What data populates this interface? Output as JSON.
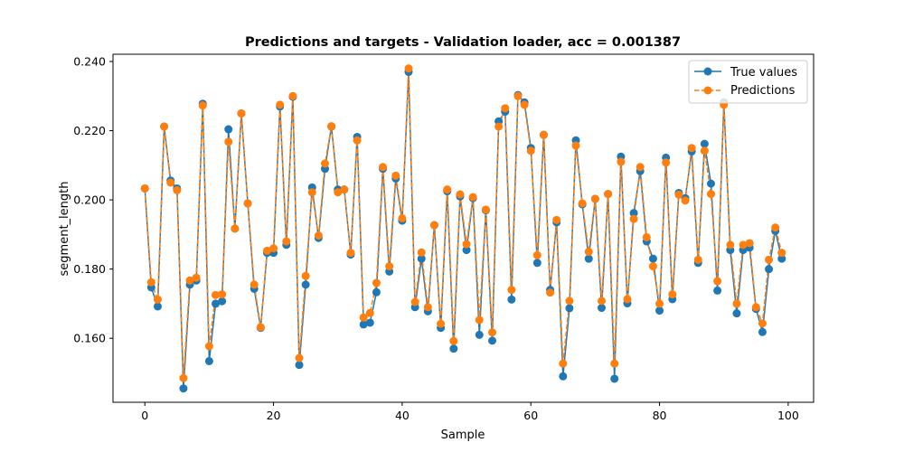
{
  "chart_data": {
    "type": "line",
    "title": "Predictions and targets - Validation loader, acc = 0.001387",
    "xlabel": "Sample",
    "ylabel": "segment_length",
    "xlim": [
      -4.95,
      103.95
    ],
    "ylim": [
      0.1415,
      0.2421
    ],
    "x_ticks": [
      0,
      20,
      40,
      60,
      80,
      100
    ],
    "y_ticks": [
      0.16,
      0.18,
      0.2,
      0.22,
      0.24
    ],
    "y_tick_labels": [
      "0.160",
      "0.180",
      "0.200",
      "0.220",
      "0.240"
    ],
    "legend_position": "top-right",
    "grid": false,
    "series": [
      {
        "name": "True values",
        "color": "#1f77b4",
        "linestyle": "solid",
        "marker": "circle",
        "values": [
          0.2033,
          0.1747,
          0.1692,
          0.2212,
          0.2056,
          0.2033,
          0.1455,
          0.1755,
          0.1767,
          0.2278,
          0.1534,
          0.17,
          0.1707,
          0.2204,
          0.1917,
          0.225,
          0.199,
          0.1743,
          0.163,
          0.1847,
          0.1847,
          0.227,
          0.187,
          0.2298,
          0.1523,
          0.1755,
          0.2036,
          0.189,
          0.209,
          0.2212,
          0.203,
          0.203,
          0.1842,
          0.2182,
          0.164,
          0.1645,
          0.1733,
          0.209,
          0.1793,
          0.2062,
          0.194,
          0.237,
          0.169,
          0.183,
          0.1678,
          0.1927,
          0.163,
          0.2025,
          0.157,
          0.201,
          0.1855,
          0.2005,
          0.161,
          0.197,
          0.1593,
          0.2227,
          0.2255,
          0.1712,
          0.2303,
          0.2282,
          0.215,
          0.1818,
          0.2188,
          0.174,
          0.1935,
          0.149,
          0.1687,
          0.2172,
          0.1987,
          0.183,
          0.2003,
          0.1688,
          0.2017,
          0.1483,
          0.2125,
          0.1701,
          0.1962,
          0.2083,
          0.188,
          0.183,
          0.168,
          0.2122,
          0.1713,
          0.202,
          0.2005,
          0.214,
          0.1818,
          0.2162,
          0.2047,
          0.1738,
          0.2282,
          0.1855,
          0.1672,
          0.1855,
          0.1862,
          0.1685,
          0.1618,
          0.18,
          0.191,
          0.183
        ]
      },
      {
        "name": "Predictions",
        "color": "#ff7f0e",
        "linestyle": "dashed",
        "marker": "circle",
        "values": [
          0.2033,
          0.1762,
          0.1712,
          0.2212,
          0.205,
          0.2028,
          0.1485,
          0.1767,
          0.1775,
          0.2273,
          0.1577,
          0.1725,
          0.1727,
          0.2168,
          0.1917,
          0.225,
          0.199,
          0.1755,
          0.1632,
          0.1853,
          0.186,
          0.2275,
          0.188,
          0.23,
          0.1543,
          0.178,
          0.2022,
          0.1897,
          0.2105,
          0.2213,
          0.2022,
          0.203,
          0.1847,
          0.2172,
          0.166,
          0.1673,
          0.176,
          0.2095,
          0.1808,
          0.207,
          0.1947,
          0.238,
          0.1705,
          0.1848,
          0.169,
          0.1927,
          0.1642,
          0.203,
          0.1592,
          0.2016,
          0.1872,
          0.2008,
          0.1653,
          0.1972,
          0.1617,
          0.2212,
          0.2265,
          0.174,
          0.23,
          0.2275,
          0.2142,
          0.184,
          0.2188,
          0.1732,
          0.1942,
          0.1527,
          0.1708,
          0.2157,
          0.199,
          0.185,
          0.2003,
          0.1708,
          0.2017,
          0.1527,
          0.211,
          0.1713,
          0.1945,
          0.2095,
          0.1892,
          0.1808,
          0.17,
          0.2108,
          0.1727,
          0.2015,
          0.1998,
          0.215,
          0.1827,
          0.2142,
          0.2017,
          0.1765,
          0.2275,
          0.187,
          0.17,
          0.187,
          0.1875,
          0.169,
          0.1643,
          0.1827,
          0.192,
          0.1847
        ]
      }
    ]
  }
}
